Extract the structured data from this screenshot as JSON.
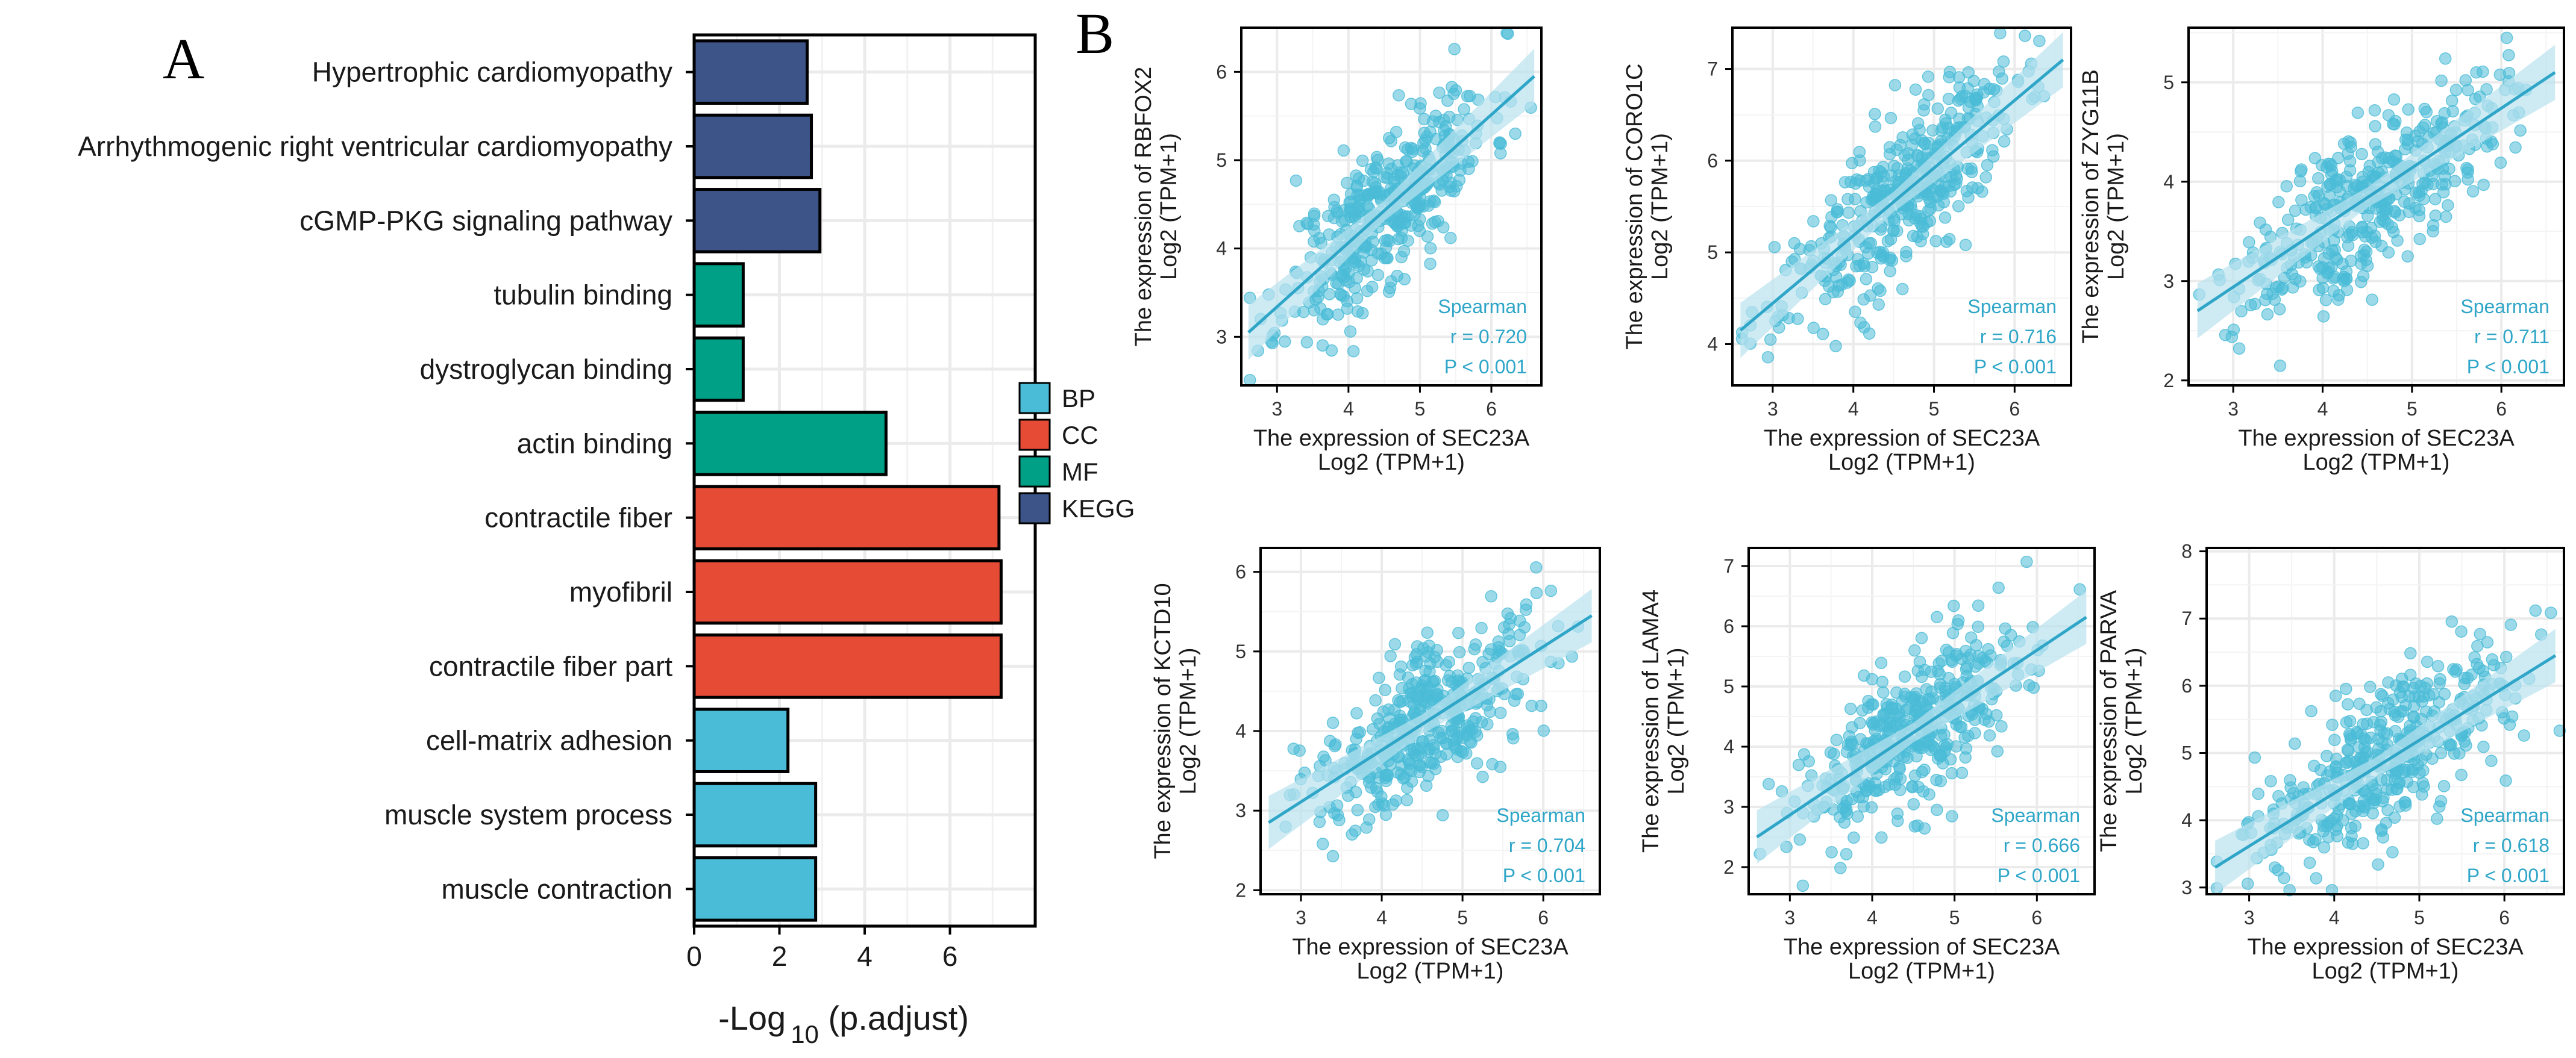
{
  "panels": {
    "a": "A",
    "b": "B"
  },
  "chart_data": [
    {
      "type": "bar",
      "orientation": "horizontal",
      "title": "",
      "xlabel": "-Log",
      "xlabel_sub": "10",
      "xlabel_suffix": " (p.adjust)",
      "xlim": [
        0,
        8
      ],
      "xticks": [
        0,
        2,
        4,
        6
      ],
      "grid": true,
      "legend": {
        "position": "right",
        "entries": [
          {
            "name": "BP",
            "color": "#4ABCD7"
          },
          {
            "name": "CC",
            "color": "#E64B35"
          },
          {
            "name": "MF",
            "color": "#00A087"
          },
          {
            "name": "KEGG",
            "color": "#3C5488"
          }
        ]
      },
      "bars": [
        {
          "label": "Hypertrophic cardiomyopathy",
          "value": 2.65,
          "group": "KEGG"
        },
        {
          "label": "Arrhythmogenic right ventricular cardiomyopathy",
          "value": 2.75,
          "group": "KEGG"
        },
        {
          "label": "cGMP-PKG signaling pathway",
          "value": 2.95,
          "group": "KEGG"
        },
        {
          "label": "tubulin binding",
          "value": 1.15,
          "group": "MF"
        },
        {
          "label": "dystroglycan binding",
          "value": 1.15,
          "group": "MF"
        },
        {
          "label": "actin binding",
          "value": 4.5,
          "group": "MF"
        },
        {
          "label": "contractile fiber",
          "value": 7.15,
          "group": "CC"
        },
        {
          "label": "myofibril",
          "value": 7.2,
          "group": "CC"
        },
        {
          "label": "contractile fiber part",
          "value": 7.2,
          "group": "CC"
        },
        {
          "label": "cell-matrix adhesion",
          "value": 2.2,
          "group": "BP"
        },
        {
          "label": "muscle system process",
          "value": 2.85,
          "group": "BP"
        },
        {
          "label": "muscle contraction",
          "value": 2.85,
          "group": "BP"
        }
      ]
    },
    {
      "type": "scatter",
      "gene": "RBFOX2",
      "ylabel_line1": "The expression of RBFOX2",
      "ylabel_line2": "Log2 (TPM+1)",
      "xlabel_line1": "The expression of SEC23A",
      "xlabel_line2": "Log2 (TPM+1)",
      "xlim": [
        2.5,
        6.7
      ],
      "xticks": [
        3,
        4,
        5,
        6
      ],
      "ylim": [
        2.45,
        6.5
      ],
      "yticks": [
        3,
        4,
        5,
        6
      ],
      "fit": {
        "x0": 2.6,
        "y0": 3.05,
        "x1": 6.6,
        "y1": 5.95
      },
      "stats": {
        "method": "Spearman",
        "r": "r = 0.720",
        "p": "P < 0.001"
      },
      "n_points": 420,
      "seed": 11
    },
    {
      "type": "scatter",
      "gene": "CORO1C",
      "ylabel_line1": "The expression of CORO1C",
      "ylabel_line2": "Log2 (TPM+1)",
      "xlabel_line1": "The expression of SEC23A",
      "xlabel_line2": "Log2 (TPM+1)",
      "xlim": [
        2.5,
        6.7
      ],
      "xticks": [
        3,
        4,
        5,
        6
      ],
      "ylim": [
        3.55,
        7.45
      ],
      "yticks": [
        4,
        5,
        6,
        7
      ],
      "fit": {
        "x0": 2.6,
        "y0": 4.15,
        "x1": 6.6,
        "y1": 7.1
      },
      "stats": {
        "method": "Spearman",
        "r": "r = 0.716",
        "p": "P < 0.001"
      },
      "n_points": 420,
      "seed": 23
    },
    {
      "type": "scatter",
      "gene": "ZYG11B",
      "ylabel_line1": "The expression of ZYG11B",
      "ylabel_line2": "Log2 (TPM+1)",
      "xlabel_line1": "The expression of SEC23A",
      "xlabel_line2": "Log2 (TPM+1)",
      "xlim": [
        2.5,
        6.7
      ],
      "xticks": [
        3,
        4,
        5,
        6
      ],
      "ylim": [
        1.95,
        5.55
      ],
      "yticks": [
        2,
        3,
        4,
        5
      ],
      "fit": {
        "x0": 2.6,
        "y0": 2.7,
        "x1": 6.6,
        "y1": 5.1
      },
      "stats": {
        "method": "Spearman",
        "r": "r = 0.711",
        "p": "P < 0.001"
      },
      "n_points": 420,
      "seed": 37
    },
    {
      "type": "scatter",
      "gene": "KCTD10",
      "ylabel_line1": "The expression of KCTD10",
      "ylabel_line2": "Log2 (TPM+1)",
      "xlabel_line1": "The expression of SEC23A",
      "xlabel_line2": "Log2 (TPM+1)",
      "xlim": [
        2.5,
        6.7
      ],
      "xticks": [
        3,
        4,
        5,
        6
      ],
      "ylim": [
        1.95,
        6.3
      ],
      "yticks": [
        2,
        3,
        4,
        5,
        6
      ],
      "fit": {
        "x0": 2.6,
        "y0": 2.85,
        "x1": 6.6,
        "y1": 5.45
      },
      "stats": {
        "method": "Spearman",
        "r": "r = 0.704",
        "p": "P < 0.001"
      },
      "n_points": 420,
      "seed": 41
    },
    {
      "type": "scatter",
      "gene": "LAMA4",
      "ylabel_line1": "The expression of LAMA4",
      "ylabel_line2": "Log2 (TPM+1)",
      "xlabel_line1": "The expression of SEC23A",
      "xlabel_line2": "Log2 (TPM+1)",
      "xlim": [
        2.5,
        6.7
      ],
      "xticks": [
        3,
        4,
        5,
        6
      ],
      "ylim": [
        1.55,
        7.3
      ],
      "yticks": [
        2,
        3,
        4,
        5,
        6,
        7
      ],
      "fit": {
        "x0": 2.6,
        "y0": 2.5,
        "x1": 6.6,
        "y1": 6.15
      },
      "stats": {
        "method": "Spearman",
        "r": "r = 0.666",
        "p": "P < 0.001"
      },
      "n_points": 420,
      "seed": 53
    },
    {
      "type": "scatter",
      "gene": "PARVA",
      "ylabel_line1": "The expression of PARVA",
      "ylabel_line2": "Log2 (TPM+1)",
      "xlabel_line1": "The expression of SEC23A",
      "xlabel_line2": "Log2 (TPM+1)",
      "xlim": [
        2.5,
        6.7
      ],
      "xticks": [
        3,
        4,
        5,
        6
      ],
      "ylim": [
        2.9,
        8.05
      ],
      "yticks": [
        3,
        4,
        5,
        6,
        7,
        8
      ],
      "fit": {
        "x0": 2.6,
        "y0": 3.3,
        "x1": 6.6,
        "y1": 6.45
      },
      "stats": {
        "method": "Spearman",
        "r": "r = 0.618",
        "p": "P < 0.001"
      },
      "n_points": 420,
      "seed": 67
    }
  ],
  "colors": {
    "scatter_point": "#4ABCD7",
    "scatter_line": "#2FA6C8",
    "scatter_band": "#B9E3EF",
    "grid": "#EBEBEB",
    "axis": "#000000"
  }
}
